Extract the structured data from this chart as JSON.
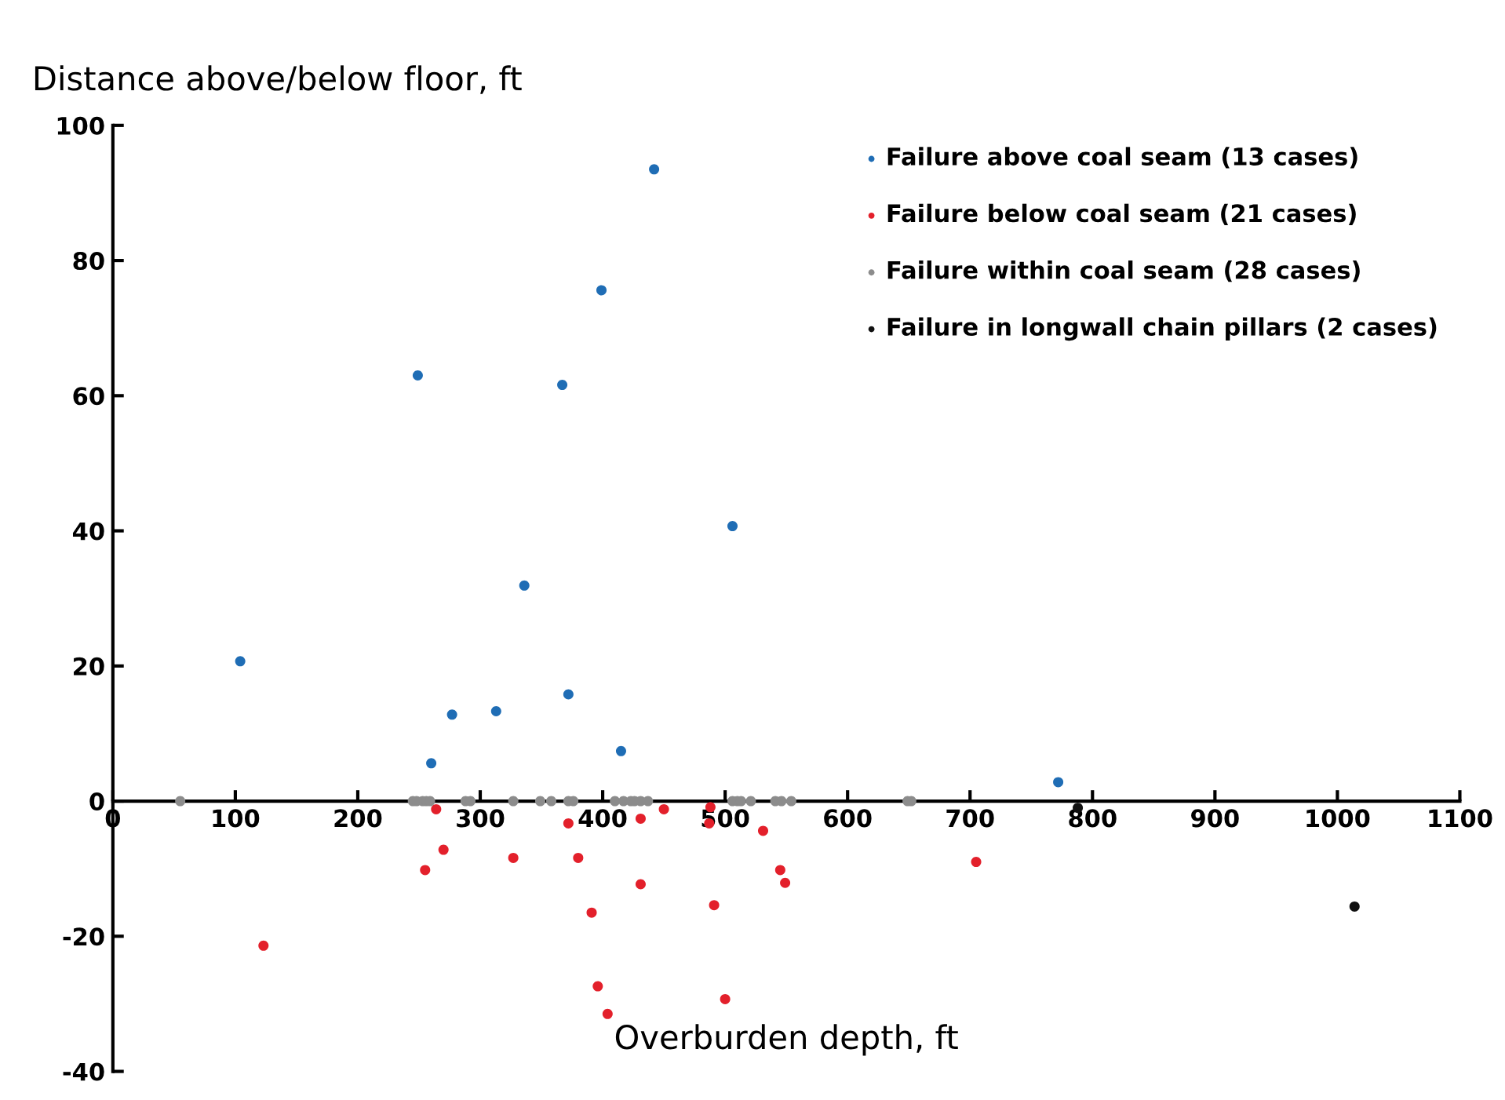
{
  "chart_data": {
    "type": "scatter",
    "xlabel": "Overburden depth, ft",
    "ylabel": "Distance above/below floor, ft",
    "xlim": [
      0,
      1100
    ],
    "xticks": [
      0,
      100,
      200,
      300,
      400,
      500,
      600,
      700,
      800,
      900,
      1000,
      1100
    ],
    "ylim": [
      -40,
      100
    ],
    "yticks": [
      -40,
      -20,
      0,
      20,
      40,
      60,
      80,
      100
    ],
    "grid": false,
    "legend": "top right",
    "marker": "circle",
    "series": [
      {
        "name": "Failure above coal seam (13 cases)",
        "color": "#1f6db5",
        "x": [
          104,
          277,
          313,
          372,
          260,
          415,
          249,
          336,
          367,
          399,
          442,
          506,
          772
        ],
        "values": [
          20.7,
          12.8,
          13.3,
          15.8,
          5.6,
          7.4,
          63,
          31.9,
          61.6,
          75.6,
          93.5,
          40.7,
          2.8
        ]
      },
      {
        "name": "Failure below coal seam (21 cases)",
        "color": "#e3202b",
        "x": [
          264,
          270,
          255,
          327,
          372,
          380,
          391,
          396,
          404,
          431,
          431,
          450,
          488,
          487,
          491,
          500,
          531,
          545,
          549,
          123,
          705
        ],
        "values": [
          -1.2,
          -7.2,
          -10.2,
          -8.4,
          -3.3,
          -8.4,
          -16.5,
          -27.4,
          -31.5,
          -2.6,
          -12.3,
          -1.2,
          -0.9,
          -3.3,
          -15.4,
          -29.3,
          -4.4,
          -10.2,
          -12.1,
          -21.4,
          -9
        ]
      },
      {
        "name": "Failure within coal seam (28 cases)",
        "color": "#8c8c8c",
        "x": [
          55,
          245,
          248,
          253,
          256,
          259,
          288,
          292,
          327,
          349,
          358,
          372,
          376,
          410,
          417,
          423,
          426,
          431,
          437,
          506,
          510,
          513,
          521,
          541,
          546,
          554,
          649,
          652
        ],
        "values": [
          0,
          0,
          0,
          0,
          0,
          0,
          0,
          0,
          0,
          0,
          0,
          0,
          0,
          0,
          0,
          0,
          0,
          0,
          0,
          0,
          0,
          0,
          0,
          0,
          0,
          0,
          0,
          0
        ]
      },
      {
        "name": "Failure in longwall chain pillars (2 cases)",
        "color": "#111111",
        "x": [
          788,
          1014
        ],
        "values": [
          -1,
          -15.6
        ]
      }
    ]
  }
}
